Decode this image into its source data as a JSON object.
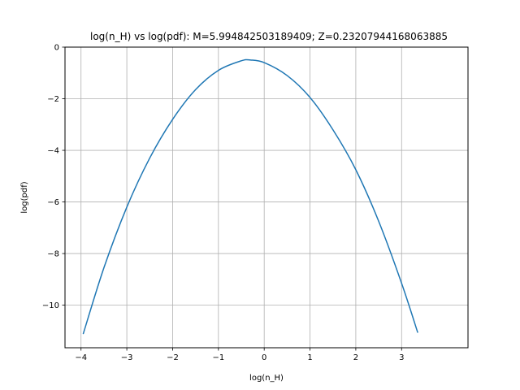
{
  "chart_data": {
    "type": "line",
    "title": "log(n_H) vs log(pdf): M=5.994842503189409; Z=0.23207944168063885",
    "xlabel": "log(n_H)",
    "ylabel": "log(pdf)",
    "xlim": [
      -4.35,
      4.45
    ],
    "ylim": [
      -11.65,
      0
    ],
    "xticks": [
      -4,
      -3,
      -2,
      -1,
      0,
      1,
      2,
      3
    ],
    "yticks": [
      -10,
      -8,
      -6,
      -4,
      -2,
      0
    ],
    "xtick_labels": [
      "−4",
      "−3",
      "−2",
      "−1",
      "0",
      "1",
      "2",
      "3"
    ],
    "ytick_labels": [
      "−10",
      "−8",
      "−6",
      "−4",
      "−2",
      "0"
    ],
    "grid": true,
    "series": [
      {
        "color": "#1f77b4",
        "x": [
          -3.95,
          -3.5,
          -3.0,
          -2.5,
          -2.0,
          -1.5,
          -1.0,
          -0.5,
          -0.3,
          0.0,
          0.5,
          1.0,
          1.5,
          2.0,
          2.5,
          3.0,
          3.35
        ],
        "y": [
          -11.1,
          -8.55,
          -6.2,
          -4.3,
          -2.8,
          -1.65,
          -0.9,
          -0.53,
          -0.5,
          -0.6,
          -1.1,
          -1.95,
          -3.2,
          -4.75,
          -6.75,
          -9.15,
          -11.05
        ]
      }
    ]
  }
}
